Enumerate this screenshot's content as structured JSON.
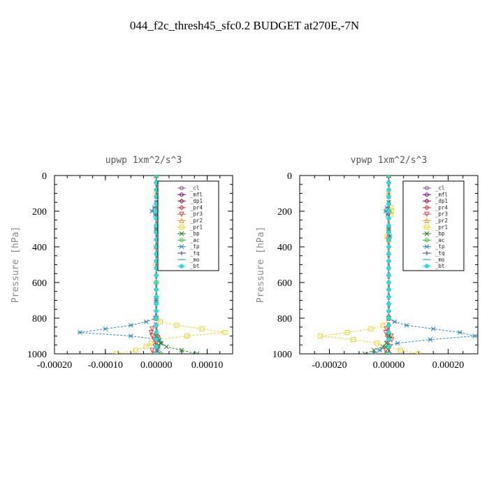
{
  "page_title": "044_f2c_thresh45_sfc0.2  BUDGET at270E,-7N",
  "colors": {
    "cl": "#7f4f8f",
    "mfl": "#800080",
    "dp1": "#b0103a",
    "pr4": "#e0303a",
    "pr3": "#e04848",
    "pr2": "#f0a020",
    "pr1": "#f2d020",
    "bp": "#208020",
    "ac": "#30c030",
    "tp": "#2a88c0",
    "tq": "#3030e0",
    "mo": "#2aa8c0",
    "bt": "#20e0e0"
  },
  "chart_data": [
    {
      "type": "line",
      "title": "upwp   1xm^2/s^3",
      "ylabel": "Pressure [hPa]",
      "xlabel": "",
      "xlim": [
        -0.0002,
        0.00015
      ],
      "ylim": [
        1000,
        0
      ],
      "x_ticks": [
        -0.0002,
        -0.0001,
        0.0,
        0.0001
      ],
      "x_tick_labels": [
        "-0.00020",
        "-0.00010",
        "0.00000",
        "0.00010"
      ],
      "y_ticks": [
        0,
        200,
        400,
        600,
        800,
        1000
      ],
      "y_tick_labels": [
        "0",
        "200",
        "400",
        "600",
        "800",
        "1000"
      ],
      "legend": [
        "_cl",
        "_mfl",
        "_dp1",
        "_pr4",
        "_pr3",
        "_pr2",
        "_pr1",
        "_bp",
        "_ac",
        "_tp",
        "_tq",
        "_mo",
        "_bt"
      ],
      "legend_position": "top-right",
      "series": [
        {
          "name": "_pr1",
          "key": "pr1",
          "pressure": [
            0,
            100,
            180,
            200,
            220,
            300,
            400,
            500,
            600,
            700,
            800,
            820,
            840,
            860,
            880,
            900,
            920,
            940,
            960,
            980,
            1000
          ],
          "values": [
            0,
            0,
            4e-06,
            6e-06,
            3e-06,
            0,
            0,
            0,
            0,
            0,
            0,
            8e-06,
            4e-05,
            9e-05,
            0.000135,
            6e-05,
            4e-06,
            -1e-05,
            -2e-05,
            -4e-05,
            -8e-05
          ]
        },
        {
          "name": "_pr2",
          "key": "pr2",
          "pressure": [
            0,
            200,
            400,
            800,
            900,
            950,
            1000
          ],
          "values": [
            0,
            2e-06,
            0,
            0,
            3e-06,
            2e-06,
            2e-06
          ]
        },
        {
          "name": "_tp",
          "key": "tp",
          "pressure": [
            0,
            150,
            180,
            200,
            220,
            300,
            700,
            800,
            820,
            840,
            860,
            880,
            900,
            920,
            940,
            960,
            980,
            1000
          ],
          "values": [
            0,
            0,
            -4e-06,
            -8e-06,
            -2e-06,
            0,
            0,
            -2e-06,
            -2e-05,
            -5e-05,
            -0.0001,
            -0.00015,
            -5e-05,
            6e-06,
            1e-05,
            4e-06,
            2e-06,
            0
          ]
        },
        {
          "name": "_pr3",
          "key": "pr3",
          "pressure": [
            0,
            800,
            860,
            880,
            900,
            920,
            940,
            960,
            980,
            1000
          ],
          "values": [
            0,
            0,
            -8e-06,
            -1e-05,
            -8e-06,
            -4e-06,
            0,
            4e-06,
            -8e-06,
            -4e-06
          ]
        },
        {
          "name": "_pr4",
          "key": "pr4",
          "pressure": [
            0,
            800,
            900,
            950,
            1000
          ],
          "values": [
            0,
            0,
            3e-06,
            -2e-06,
            4e-06
          ]
        },
        {
          "name": "_bp",
          "key": "bp",
          "pressure": [
            0,
            900,
            940,
            960,
            980,
            1000
          ],
          "values": [
            0,
            0,
            8e-06,
            2e-05,
            5e-05,
            8e-05
          ]
        },
        {
          "name": "_ac",
          "key": "ac",
          "pressure": [
            0,
            900,
            960,
            1000
          ],
          "values": [
            0,
            0,
            4e-06,
            1e-05
          ]
        },
        {
          "name": "_cl",
          "key": "cl",
          "pressure": [
            0,
            500,
            1000
          ],
          "values": [
            0,
            0,
            0
          ]
        },
        {
          "name": "_mfl",
          "key": "mfl",
          "pressure": [
            0,
            500,
            1000
          ],
          "values": [
            0,
            0,
            0
          ]
        },
        {
          "name": "_dp1",
          "key": "dp1",
          "pressure": [
            0,
            500,
            1000
          ],
          "values": [
            0,
            0,
            0
          ]
        },
        {
          "name": "_tq",
          "key": "tq",
          "pressure": [
            0,
            500,
            1000
          ],
          "values": [
            0,
            0,
            0
          ]
        },
        {
          "name": "_mo",
          "key": "mo",
          "pressure": [
            0,
            500,
            1000
          ],
          "values": [
            0,
            0,
            0
          ]
        },
        {
          "name": "_bt",
          "key": "bt",
          "pressure": [
            0,
            500,
            1000
          ],
          "values": [
            0,
            0,
            0
          ]
        }
      ]
    },
    {
      "type": "line",
      "title": "vpwp   1xm^2/s^3",
      "ylabel": "Pressure [hPa]",
      "xlabel": "",
      "xlim": [
        -0.0003,
        0.0003
      ],
      "ylim": [
        1000,
        0
      ],
      "x_ticks": [
        -0.0002,
        0.0,
        0.0002
      ],
      "x_tick_labels": [
        "-0.00020",
        "0.00000",
        "0.00020"
      ],
      "y_ticks": [
        0,
        200,
        400,
        600,
        800,
        1000
      ],
      "y_tick_labels": [
        "0",
        "200",
        "400",
        "600",
        "800",
        "1000"
      ],
      "legend": [
        "_cl",
        "_mfl",
        "_dp1",
        "_pr4",
        "_pr3",
        "_pr2",
        "_pr1",
        "_bp",
        "_ac",
        "_tp",
        "_tq",
        "_mo",
        "_bt"
      ],
      "legend_position": "top-right",
      "series": [
        {
          "name": "_pr1",
          "key": "pr1",
          "pressure": [
            0,
            100,
            180,
            200,
            220,
            300,
            340,
            360,
            800,
            840,
            860,
            880,
            900,
            920,
            940,
            960,
            980,
            1000
          ],
          "values": [
            0,
            0,
            8e-06,
            1e-05,
            6e-06,
            0,
            -6e-06,
            0,
            0,
            -2e-05,
            -6e-05,
            -0.00014,
            -0.00023,
            -0.00012,
            -4e-05,
            -1e-05,
            4e-05,
            0.0001
          ]
        },
        {
          "name": "_pr2",
          "key": "pr2",
          "pressure": [
            0,
            200,
            340,
            800,
            900,
            1000
          ],
          "values": [
            0,
            4e-06,
            -4e-06,
            0,
            4e-06,
            4e-06
          ]
        },
        {
          "name": "_tp",
          "key": "tp",
          "pressure": [
            0,
            150,
            180,
            200,
            220,
            300,
            340,
            360,
            800,
            820,
            840,
            860,
            880,
            900,
            920,
            940,
            960,
            980,
            1000
          ],
          "values": [
            0,
            0,
            -6e-06,
            -1e-05,
            -4e-06,
            0,
            4e-06,
            0,
            0,
            2e-05,
            6e-05,
            0.00015,
            0.00024,
            0.00029,
            0.00014,
            3e-05,
            -1e-05,
            -3e-05,
            -5e-05
          ]
        },
        {
          "name": "_pr3",
          "key": "pr3",
          "pressure": [
            0,
            800,
            860,
            880,
            900,
            920,
            940,
            960,
            980,
            1000
          ],
          "values": [
            0,
            0,
            -8e-06,
            -1e-05,
            8e-06,
            1e-05,
            -4e-06,
            4e-06,
            -1e-05,
            -6e-06
          ]
        },
        {
          "name": "_pr4",
          "key": "pr4",
          "pressure": [
            0,
            800,
            900,
            1000
          ],
          "values": [
            0,
            0,
            -4e-06,
            4e-06
          ]
        },
        {
          "name": "_bp",
          "key": "bp",
          "pressure": [
            0,
            900,
            940,
            960,
            980,
            1000
          ],
          "values": [
            0,
            0,
            -8e-06,
            -2e-05,
            -5e-05,
            -8e-05
          ]
        },
        {
          "name": "_ac",
          "key": "ac",
          "pressure": [
            0,
            900,
            960,
            1000
          ],
          "values": [
            0,
            0,
            -4e-06,
            -1e-05
          ]
        },
        {
          "name": "_cl",
          "key": "cl",
          "pressure": [
            0,
            500,
            1000
          ],
          "values": [
            0,
            0,
            0
          ]
        },
        {
          "name": "_mfl",
          "key": "mfl",
          "pressure": [
            0,
            500,
            1000
          ],
          "values": [
            0,
            0,
            0
          ]
        },
        {
          "name": "_dp1",
          "key": "dp1",
          "pressure": [
            0,
            500,
            1000
          ],
          "values": [
            0,
            0,
            0
          ]
        },
        {
          "name": "_tq",
          "key": "tq",
          "pressure": [
            0,
            500,
            1000
          ],
          "values": [
            0,
            0,
            0
          ]
        },
        {
          "name": "_mo",
          "key": "mo",
          "pressure": [
            0,
            500,
            1000
          ],
          "values": [
            0,
            0,
            0
          ]
        },
        {
          "name": "_bt",
          "key": "bt",
          "pressure": [
            0,
            500,
            1000
          ],
          "values": [
            0,
            0,
            0
          ]
        }
      ]
    }
  ]
}
